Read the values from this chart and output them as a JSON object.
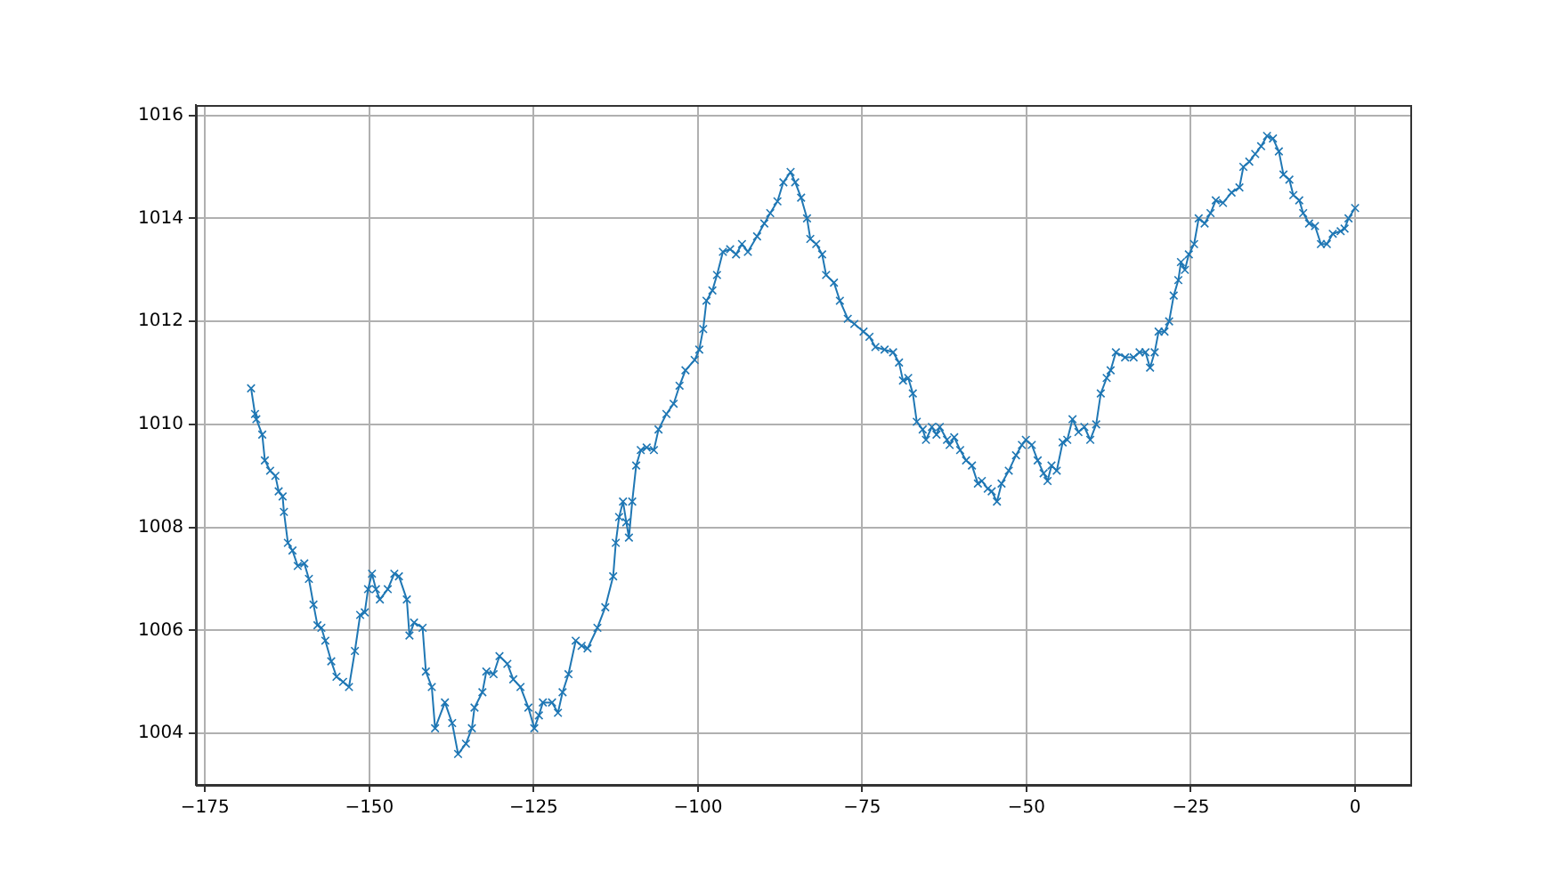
{
  "chart_data": {
    "type": "line",
    "color": "#1f77b4",
    "marker": "cross",
    "line_style": "solid",
    "grid": true,
    "xlim": [
      -176.4,
      8.4
    ],
    "xticks": [
      {
        "value": -175,
        "label": "−175"
      },
      {
        "value": -150,
        "label": "−150"
      },
      {
        "value": -125,
        "label": "−125"
      },
      {
        "value": -100,
        "label": "−100"
      },
      {
        "value": -75,
        "label": "−75"
      },
      {
        "value": -50,
        "label": "−50"
      },
      {
        "value": -25,
        "label": "−25"
      },
      0
    ],
    "ylim": [
      1003,
      1016.2
    ],
    "yticks": [
      1004,
      1006,
      1008,
      1010,
      1012,
      1014,
      1016
    ],
    "x": [
      -168.0,
      -167.4,
      -167.2,
      -166.3,
      -165.9,
      -165.1,
      -164.3,
      -163.8,
      -163.2,
      -163.0,
      -162.4,
      -161.7,
      -160.9,
      -159.9,
      -159.2,
      -158.5,
      -157.9,
      -157.3,
      -156.7,
      -155.8,
      -155.0,
      -154.0,
      -153.1,
      -152.2,
      -151.4,
      -150.7,
      -150.2,
      -149.6,
      -149.0,
      -148.4,
      -147.2,
      -146.2,
      -145.5,
      -144.3,
      -143.9,
      -143.2,
      -141.9,
      -141.4,
      -140.5,
      -140.0,
      -138.5,
      -137.4,
      -136.5,
      -135.3,
      -134.4,
      -134.0,
      -132.8,
      -132.2,
      -131.1,
      -130.2,
      -129.0,
      -128.1,
      -127.0,
      -125.8,
      -124.9,
      -124.2,
      -123.6,
      -122.2,
      -121.3,
      -120.6,
      -119.7,
      -118.6,
      -117.7,
      -116.8,
      -115.3,
      -114.1,
      -112.9,
      -112.5,
      -112.0,
      -111.4,
      -110.9,
      -110.5,
      -110.0,
      -109.4,
      -108.7,
      -107.8,
      -106.7,
      -106.0,
      -104.8,
      -103.7,
      -102.8,
      -101.9,
      -100.5,
      -99.8,
      -99.2,
      -98.7,
      -97.8,
      -97.1,
      -96.2,
      -95.1,
      -94.2,
      -93.3,
      -92.4,
      -91.0,
      -89.9,
      -89.0,
      -87.9,
      -87.0,
      -85.9,
      -85.2,
      -84.3,
      -83.4,
      -82.9,
      -82.0,
      -81.1,
      -80.5,
      -79.3,
      -78.4,
      -77.2,
      -76.2,
      -74.8,
      -73.9,
      -73.0,
      -71.6,
      -70.3,
      -69.4,
      -68.8,
      -68.0,
      -67.3,
      -66.7,
      -65.8,
      -65.3,
      -64.4,
      -63.7,
      -63.2,
      -62.1,
      -61.7,
      -61.0,
      -60.1,
      -59.2,
      -58.3,
      -57.4,
      -56.8,
      -55.9,
      -55.3,
      -54.5,
      -53.8,
      -52.7,
      -51.6,
      -50.7,
      -50.1,
      -49.2,
      -48.3,
      -47.4,
      -46.8,
      -46.2,
      -45.4,
      -44.5,
      -43.8,
      -43.0,
      -42.1,
      -41.2,
      -40.3,
      -39.4,
      -38.7,
      -37.8,
      -37.2,
      -36.4,
      -35.0,
      -33.7,
      -32.8,
      -31.9,
      -31.2,
      -30.5,
      -29.9,
      -29.0,
      -28.3,
      -27.6,
      -26.9,
      -26.5,
      -25.9,
      -25.3,
      -24.5,
      -23.8,
      -22.9,
      -22.0,
      -21.2,
      -20.1,
      -18.8,
      -17.6,
      -17.0,
      -16.1,
      -15.2,
      -14.3,
      -13.4,
      -12.5,
      -11.6,
      -10.9,
      -10.0,
      -9.4,
      -8.5,
      -7.9,
      -7.0,
      -6.1,
      -5.2,
      -4.3,
      -3.4,
      -2.2,
      -1.6,
      -1.0,
      0.0
    ],
    "values": [
      1010.7,
      1010.2,
      1010.1,
      1009.8,
      1009.3,
      1009.1,
      1009.0,
      1008.7,
      1008.6,
      1008.3,
      1007.7,
      1007.55,
      1007.25,
      1007.3,
      1007.0,
      1006.5,
      1006.1,
      1006.05,
      1005.8,
      1005.4,
      1005.1,
      1005.0,
      1004.9,
      1005.6,
      1006.3,
      1006.35,
      1006.8,
      1007.1,
      1006.8,
      1006.6,
      1006.8,
      1007.1,
      1007.05,
      1006.6,
      1005.9,
      1006.15,
      1006.05,
      1005.2,
      1004.9,
      1004.1,
      1004.6,
      1004.2,
      1003.6,
      1003.8,
      1004.1,
      1004.5,
      1004.8,
      1005.2,
      1005.15,
      1005.5,
      1005.35,
      1005.05,
      1004.9,
      1004.5,
      1004.1,
      1004.35,
      1004.6,
      1004.6,
      1004.4,
      1004.8,
      1005.15,
      1005.8,
      1005.7,
      1005.65,
      1006.05,
      1006.45,
      1007.05,
      1007.7,
      1008.2,
      1008.5,
      1008.1,
      1007.8,
      1008.5,
      1009.2,
      1009.5,
      1009.55,
      1009.5,
      1009.9,
      1010.2,
      1010.4,
      1010.75,
      1011.05,
      1011.25,
      1011.45,
      1011.85,
      1012.4,
      1012.6,
      1012.9,
      1013.35,
      1013.4,
      1013.3,
      1013.5,
      1013.35,
      1013.65,
      1013.9,
      1014.1,
      1014.33,
      1014.7,
      1014.9,
      1014.7,
      1014.4,
      1014.0,
      1013.6,
      1013.5,
      1013.3,
      1012.9,
      1012.75,
      1012.4,
      1012.05,
      1011.95,
      1011.8,
      1011.7,
      1011.5,
      1011.45,
      1011.4,
      1011.2,
      1010.85,
      1010.9,
      1010.6,
      1010.05,
      1009.9,
      1009.7,
      1009.95,
      1009.8,
      1009.95,
      1009.7,
      1009.6,
      1009.75,
      1009.5,
      1009.3,
      1009.2,
      1008.85,
      1008.9,
      1008.75,
      1008.7,
      1008.5,
      1008.85,
      1009.1,
      1009.4,
      1009.6,
      1009.7,
      1009.6,
      1009.3,
      1009.05,
      1008.9,
      1009.2,
      1009.1,
      1009.65,
      1009.7,
      1010.1,
      1009.85,
      1009.95,
      1009.7,
      1010.0,
      1010.6,
      1010.9,
      1011.05,
      1011.4,
      1011.3,
      1011.3,
      1011.4,
      1011.4,
      1011.1,
      1011.4,
      1011.8,
      1011.8,
      1012.0,
      1012.5,
      1012.8,
      1013.15,
      1013.0,
      1013.3,
      1013.5,
      1014.0,
      1013.9,
      1014.1,
      1014.35,
      1014.3,
      1014.5,
      1014.6,
      1015.0,
      1015.1,
      1015.25,
      1015.4,
      1015.6,
      1015.55,
      1015.3,
      1014.85,
      1014.75,
      1014.45,
      1014.35,
      1014.1,
      1013.9,
      1013.85,
      1013.5,
      1013.5,
      1013.7,
      1013.75,
      1013.8,
      1014.0,
      1014.2
    ]
  }
}
